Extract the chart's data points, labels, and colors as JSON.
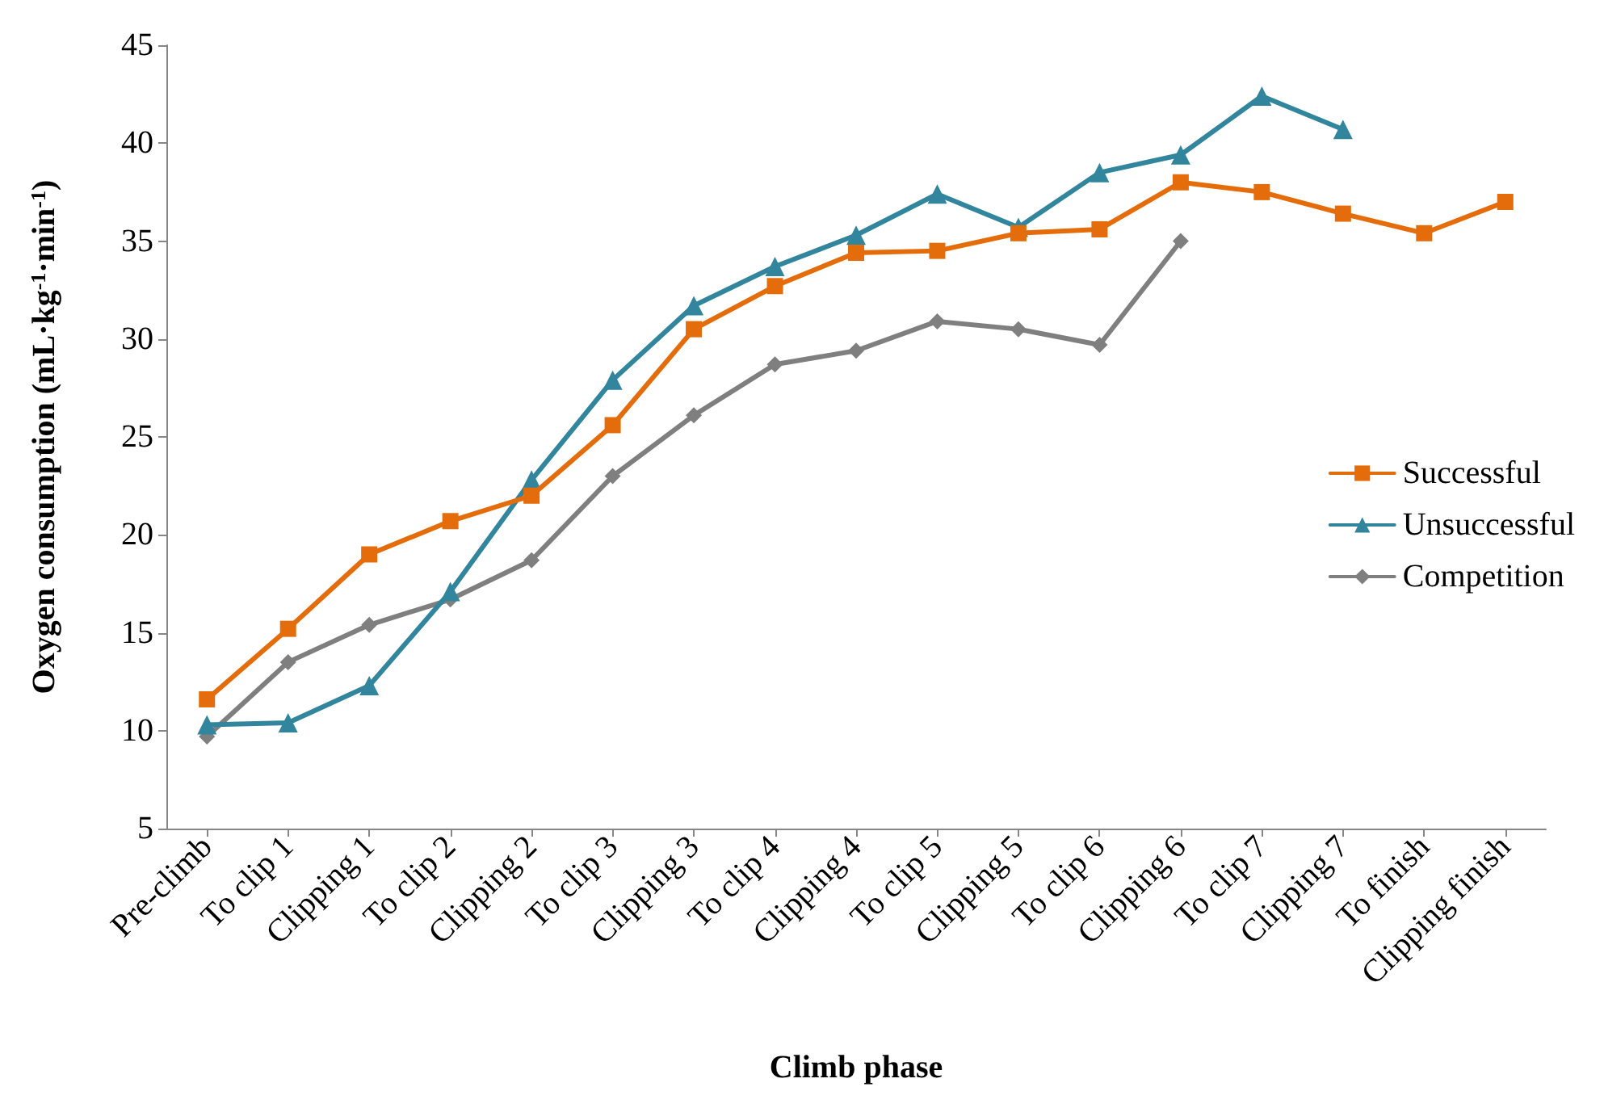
{
  "chart_data": {
    "type": "line",
    "xlabel": "Climb phase",
    "ylabel": "Oxygen consumption (mL·kg$^{-1}$·min$^{-1}$)",
    "categories": [
      "Pre-climb",
      "To clip 1",
      "Clipping 1",
      "To clip 2",
      "Clipping 2",
      "To clip 3",
      "Clipping 3",
      "To clip 4",
      "Clipping 4",
      "To clip 5",
      "Clipping 5",
      "To clip 6",
      "Clipping 6",
      "To clip 7",
      "Clipping 7",
      "To finish",
      "Clipping finish"
    ],
    "series": [
      {
        "name": "Successful",
        "color": "#e46c0a",
        "marker": "square",
        "values": [
          11.6,
          15.2,
          19.0,
          20.7,
          22.0,
          25.6,
          30.5,
          32.7,
          34.4,
          34.5,
          35.4,
          35.6,
          38.0,
          37.5,
          36.4,
          35.4,
          37.0
        ]
      },
      {
        "name": "Unsuccessful",
        "color": "#31859c",
        "marker": "triangle",
        "values": [
          10.3,
          10.4,
          12.3,
          17.1,
          22.8,
          27.9,
          31.7,
          33.7,
          35.3,
          37.4,
          35.7,
          38.5,
          39.4,
          42.4,
          40.7,
          null,
          null
        ]
      },
      {
        "name": "Competition",
        "color": "#7f7f7f",
        "marker": "diamond",
        "values": [
          9.7,
          13.5,
          15.4,
          16.7,
          18.7,
          23.0,
          26.1,
          28.7,
          29.4,
          30.9,
          30.5,
          29.7,
          35.0,
          null,
          null,
          null,
          null
        ]
      }
    ],
    "ylim": [
      5,
      45
    ],
    "yticks": [
      5,
      10,
      15,
      20,
      25,
      30,
      35,
      40,
      45
    ],
    "grid": false,
    "legend": "right",
    "line_style": "solid"
  }
}
